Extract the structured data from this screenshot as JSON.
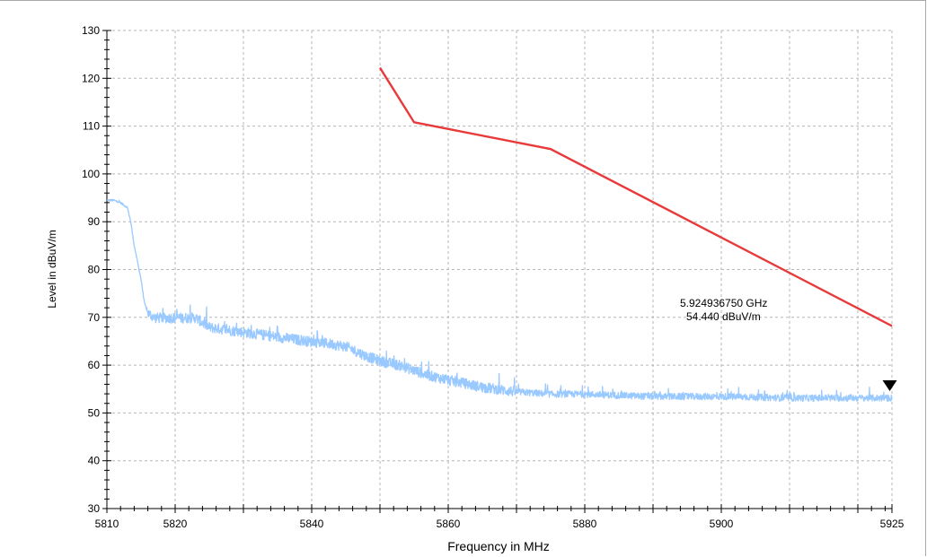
{
  "chart_data": {
    "type": "line",
    "xlabel": "Frequency in MHz",
    "ylabel": "Level in dBuV/m",
    "xlim": [
      5810,
      5925
    ],
    "ylim": [
      30,
      130
    ],
    "x_tick_values": [
      5810,
      5820,
      5840,
      5860,
      5880,
      5900,
      5925
    ],
    "x_gridlines": [
      5810,
      5820,
      5830,
      5840,
      5850,
      5860,
      5870,
      5880,
      5890,
      5900,
      5910,
      5920,
      5925
    ],
    "y_tick_values": [
      30,
      40,
      50,
      60,
      70,
      80,
      90,
      100,
      110,
      120,
      130
    ],
    "grid": true,
    "series": [
      {
        "color": "#99c9ff",
        "style": "noisy-trace",
        "x": [
          5810,
          5811,
          5812,
          5813,
          5813.5,
          5814,
          5815,
          5815.5,
          5816,
          5817,
          5820,
          5823,
          5825,
          5830,
          5835,
          5840,
          5843,
          5845,
          5848,
          5850,
          5853,
          5857,
          5860,
          5865,
          5870,
          5875,
          5880,
          5890,
          5900,
          5910,
          5920,
          5925
        ],
        "y": [
          94.5,
          94.5,
          94,
          93,
          90,
          85,
          78,
          73,
          71,
          70,
          70,
          70,
          68,
          67,
          66,
          65,
          64.5,
          64,
          62,
          61,
          60,
          58,
          57,
          55.5,
          54.5,
          54,
          54,
          53.5,
          53.5,
          53.2,
          53.2,
          53.2
        ]
      },
      {
        "color": "#e83a3a",
        "style": "limit-line",
        "x": [
          5850,
          5855,
          5875,
          5925
        ],
        "y": [
          122.2,
          110.8,
          105.2,
          68.2
        ]
      }
    ],
    "marker": {
      "x": 5924.93675,
      "y": 54.44,
      "frequency_text": "5.924936750 GHz",
      "level_text": "54.440 dBuV/m"
    }
  }
}
